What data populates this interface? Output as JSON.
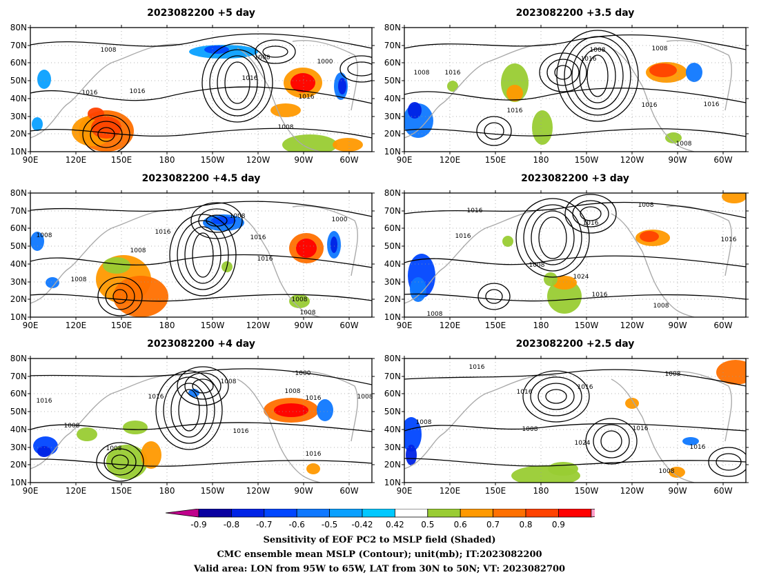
{
  "panels": [
    {
      "title": "2023082200  +5 day",
      "contours": [
        {
          "text": "1008"
        },
        {
          "text": "1008"
        },
        {
          "text": "1000"
        },
        {
          "text": "1016"
        },
        {
          "text": "1016"
        },
        {
          "text": "1016"
        },
        {
          "text": "1016"
        },
        {
          "text": "1008"
        }
      ]
    },
    {
      "title": "2023082200  +3.5 day",
      "contours": [
        {
          "text": "1008"
        },
        {
          "text": "1008"
        },
        {
          "text": "1016"
        },
        {
          "text": "1008"
        },
        {
          "text": "1016"
        },
        {
          "text": "1016"
        },
        {
          "text": "1016"
        },
        {
          "text": "1016"
        },
        {
          "text": "1008"
        }
      ]
    },
    {
      "title": "2023082200  +4.5 day",
      "contours": [
        {
          "text": "1008"
        },
        {
          "text": "1000"
        },
        {
          "text": "1016"
        },
        {
          "text": "1016"
        },
        {
          "text": "1016"
        },
        {
          "text": "1008"
        },
        {
          "text": "1008"
        },
        {
          "text": "1008"
        },
        {
          "text": "1008"
        },
        {
          "text": "1008"
        }
      ]
    },
    {
      "title": "2023082200  +3 day",
      "contours": [
        {
          "text": "1008"
        },
        {
          "text": "1016"
        },
        {
          "text": "1016"
        },
        {
          "text": "1016"
        },
        {
          "text": "1016"
        },
        {
          "text": "1008"
        },
        {
          "text": "1024"
        },
        {
          "text": "1016"
        },
        {
          "text": "1008"
        },
        {
          "text": "1008"
        }
      ]
    },
    {
      "title": "2023082200  +4 day",
      "contours": [
        {
          "text": "1008"
        },
        {
          "text": "1000"
        },
        {
          "text": "1008"
        },
        {
          "text": "1016"
        },
        {
          "text": "1016"
        },
        {
          "text": "1016"
        },
        {
          "text": "1008"
        },
        {
          "text": "1016"
        },
        {
          "text": "1008"
        },
        {
          "text": "1016"
        },
        {
          "text": "1008"
        }
      ]
    },
    {
      "title": "2023082200  +2.5 day",
      "contours": [
        {
          "text": "1016"
        },
        {
          "text": "1008"
        },
        {
          "text": "1016"
        },
        {
          "text": "1016"
        },
        {
          "text": "1008"
        },
        {
          "text": "1008"
        },
        {
          "text": "1024"
        },
        {
          "text": "1016"
        },
        {
          "text": "1016"
        },
        {
          "text": "1008"
        }
      ]
    }
  ],
  "axes": {
    "lat_labels": [
      "80N",
      "70N",
      "60N",
      "50N",
      "40N",
      "30N",
      "20N",
      "10N"
    ],
    "lon_labels": [
      "90E",
      "120E",
      "150E",
      "180",
      "150W",
      "120W",
      "90W",
      "60W"
    ]
  },
  "colorbar": {
    "levels": [
      "-0.9",
      "-0.8",
      "-0.7",
      "-0.6",
      "-0.5",
      "-0.42",
      "0.42",
      "0.5",
      "0.6",
      "0.7",
      "0.8",
      "0.9"
    ],
    "low_color": "#c0008c",
    "high_color": "#ff9ec8",
    "colors": [
      "#0a00a0",
      "#0023e6",
      "#0046ff",
      "#0f78ff",
      "#0aa0ff",
      "#00c8ff",
      "#ffffff",
      "#99cc33",
      "#ff9900",
      "#ff7000",
      "#ff4200",
      "#ff0000"
    ]
  },
  "caption": {
    "line1": "Sensitivity of EOF PC2 to MSLP field (Shaded)",
    "line2": "CMC ensemble mean MSLP (Contour); unit(mb); IT:2023082200",
    "line3": "Valid area: LON from 95W to 65W, LAT from 30N to 50N; VT: 2023082700"
  }
}
